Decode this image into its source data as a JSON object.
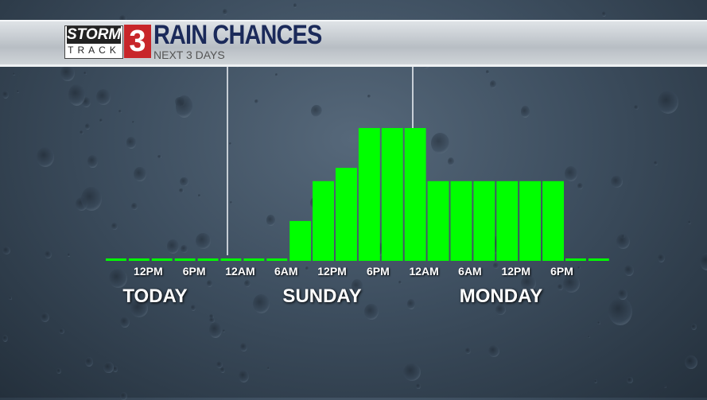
{
  "header": {
    "logo_top": "STORM",
    "logo_bottom": "TRACK",
    "logo_number": "3",
    "title": "RAIN CHANCES",
    "subtitle": "NEXT 3 DAYS"
  },
  "colors": {
    "bar": "#00ff00",
    "title": "#1b2a5a",
    "logo_red": "#c8262a"
  },
  "chart_data": {
    "type": "bar",
    "interval_hours": 3,
    "values": [
      0,
      0,
      0,
      0,
      0,
      0,
      0,
      0,
      30,
      60,
      70,
      100,
      100,
      100,
      60,
      60,
      60,
      60,
      60,
      60,
      0,
      0
    ],
    "ylim": [
      0,
      100
    ],
    "grid": false,
    "tick_labels": [
      "12PM",
      "6PM",
      "12AM",
      "6AM",
      "12PM",
      "6PM",
      "12AM",
      "6AM",
      "12PM",
      "6PM"
    ],
    "tick_slots": [
      1.5,
      3.5,
      5.5,
      7.5,
      9.5,
      11.5,
      13.5,
      15.5,
      17.5,
      19.5
    ],
    "day_labels": [
      "TODAY",
      "SUNDAY",
      "MONDAY"
    ]
  }
}
